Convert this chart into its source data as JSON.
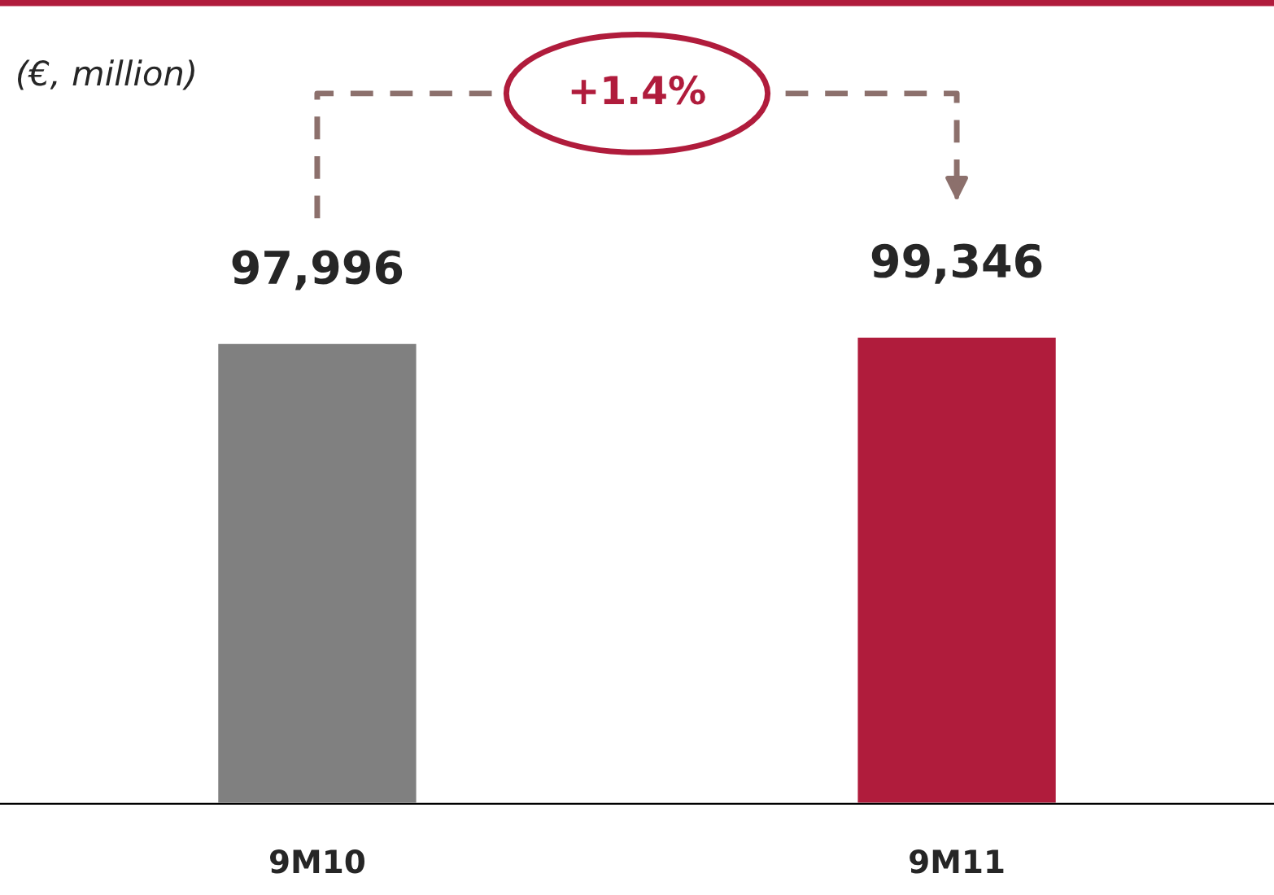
{
  "chart_data": {
    "type": "bar",
    "categories": [
      "9M10",
      "9M11"
    ],
    "values": [
      97996,
      99346
    ],
    "colors": [
      "#808080",
      "#b01c3c"
    ],
    "value_labels": [
      "97,996",
      "99,346"
    ],
    "annotations": [
      "(€, million)",
      "+1.4%"
    ]
  }
}
